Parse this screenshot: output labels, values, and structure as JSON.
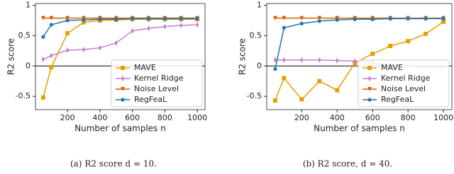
{
  "chart_data": [
    {
      "type": "line",
      "caption": "(a) R2 score d = 10.",
      "xlabel": "Number of samples n",
      "ylabel": "R2 score",
      "x": [
        50,
        100,
        200,
        300,
        400,
        500,
        600,
        700,
        800,
        900,
        1000
      ],
      "xlim": [
        2.5,
        1047.5
      ],
      "xticks": [
        200,
        400,
        600,
        800,
        1000
      ],
      "ylim": [
        -0.72,
        1.03
      ],
      "yticks": [
        -0.5,
        0.0,
        0.5,
        1.0
      ],
      "zero_line": true,
      "legend": "lower right",
      "series": [
        {
          "name": "MAVE",
          "color": "#e69f00",
          "marker": "square",
          "values": [
            -0.52,
            -0.02,
            0.54,
            0.72,
            0.75,
            0.76,
            0.77,
            0.77,
            0.77,
            0.77,
            0.77
          ]
        },
        {
          "name": "Kernel Ridge",
          "color": "#cc79d2",
          "marker": "diamond",
          "values": [
            0.11,
            0.17,
            0.26,
            0.27,
            0.3,
            0.38,
            0.58,
            0.62,
            0.65,
            0.67,
            0.68
          ]
        },
        {
          "name": "Noise Level",
          "color": "#d55e00",
          "marker": "triangle-down",
          "values": [
            0.79,
            0.79,
            0.79,
            0.79,
            0.79,
            0.79,
            0.79,
            0.79,
            0.79,
            0.79,
            0.79
          ]
        },
        {
          "name": "RegFeaL",
          "color": "#1f77b4",
          "marker": "pentagon",
          "values": [
            0.48,
            0.68,
            0.75,
            0.76,
            0.77,
            0.77,
            0.78,
            0.78,
            0.78,
            0.78,
            0.78
          ]
        }
      ]
    },
    {
      "type": "line",
      "caption": "(b) R2 score, d = 40.",
      "xlabel": "Number of samples n",
      "ylabel": "R2 score",
      "x": [
        50,
        100,
        200,
        300,
        400,
        500,
        600,
        700,
        800,
        900,
        1000
      ],
      "xlim": [
        2.5,
        1047.5
      ],
      "xticks": [
        200,
        400,
        600,
        800,
        1000
      ],
      "ylim": [
        -0.72,
        1.03
      ],
      "yticks": [
        -0.5,
        0.0,
        0.5,
        1.0
      ],
      "zero_line": true,
      "legend": "lower right",
      "series": [
        {
          "name": "MAVE",
          "color": "#e69f00",
          "marker": "square",
          "values": [
            -0.57,
            -0.2,
            -0.55,
            -0.25,
            -0.4,
            0.05,
            0.2,
            0.33,
            0.41,
            0.53,
            0.73
          ]
        },
        {
          "name": "Kernel Ridge",
          "color": "#cc79d2",
          "marker": "diamond",
          "values": [
            0.1,
            0.1,
            0.1,
            0.1,
            0.09,
            0.08,
            0.05,
            0.02,
            0.0,
            -0.02,
            -0.02
          ]
        },
        {
          "name": "Noise Level",
          "color": "#d55e00",
          "marker": "triangle-down",
          "values": [
            0.79,
            0.79,
            0.79,
            0.79,
            0.79,
            0.79,
            0.79,
            0.79,
            0.79,
            0.79,
            0.79
          ]
        },
        {
          "name": "RegFeaL",
          "color": "#1f77b4",
          "marker": "pentagon",
          "values": [
            -0.05,
            0.63,
            0.7,
            0.74,
            0.76,
            0.77,
            0.77,
            0.78,
            0.78,
            0.78,
            0.78
          ]
        }
      ]
    }
  ]
}
